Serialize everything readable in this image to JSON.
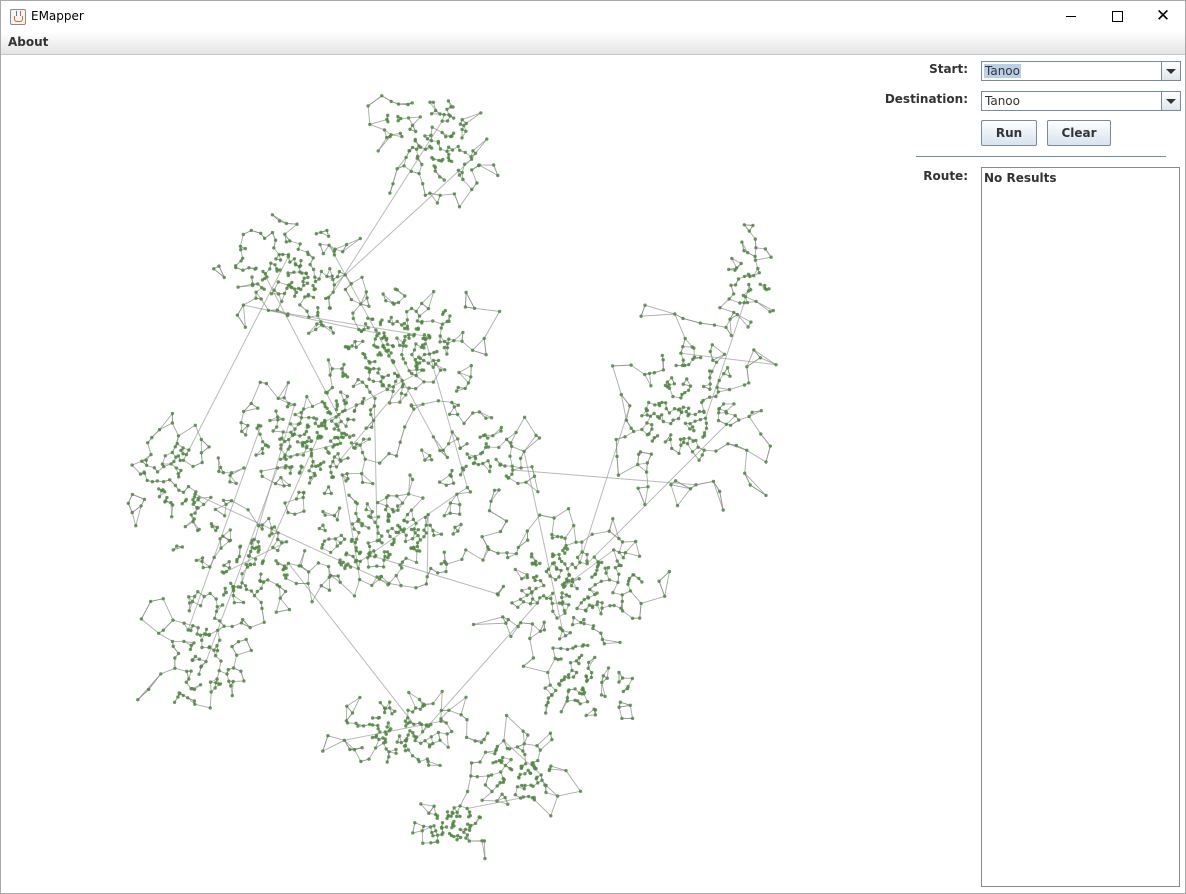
{
  "window": {
    "title": "EMapper",
    "app_icon": "java-cup-icon"
  },
  "menu": {
    "items": [
      "About"
    ]
  },
  "form": {
    "start_label": "Start:",
    "start_value": "Tanoo",
    "destination_label": "Destination:",
    "destination_value": "Tanoo",
    "run_label": "Run",
    "clear_label": "Clear",
    "route_label": "Route:",
    "route_text": "No Results"
  },
  "map": {
    "node_color": "#4e8a3e",
    "edge_color": "#8c8c8c"
  }
}
